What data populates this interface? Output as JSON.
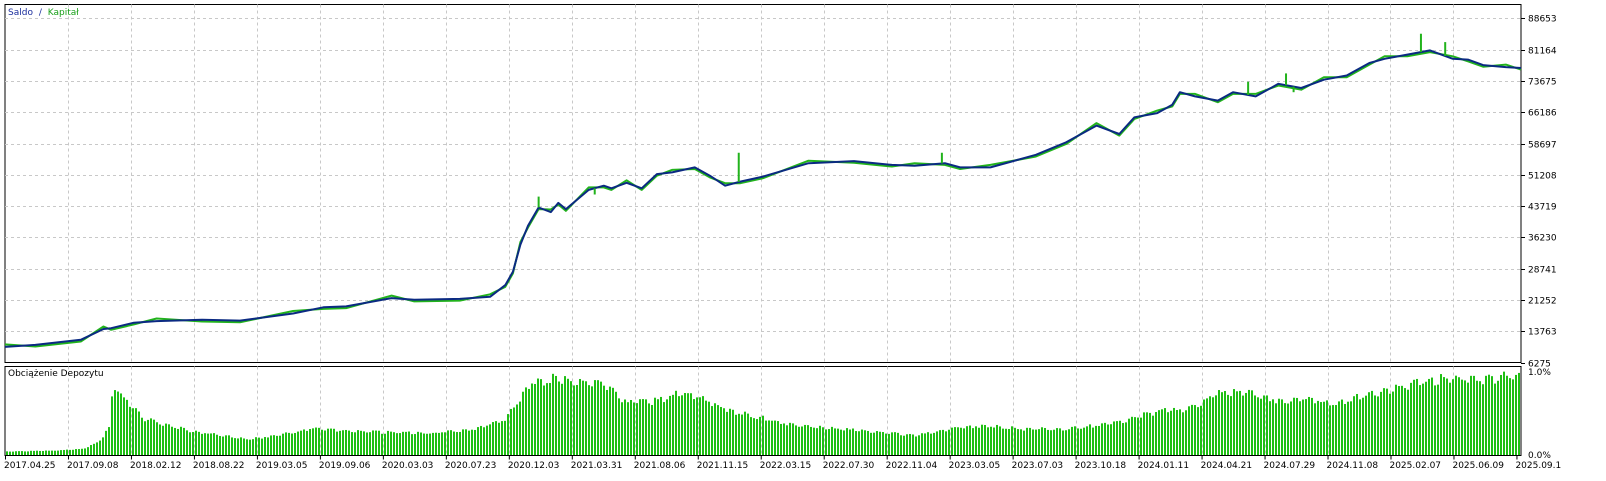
{
  "colors": {
    "balance": "#0b2a82",
    "equity": "#22b31c",
    "load_bar": "#1fbf14",
    "grid": "#c8c8c8",
    "frame": "#000000"
  },
  "legend": {
    "balance_label": "Saldo",
    "separator": "/",
    "equity_label": "Kapitał"
  },
  "chart_data": [
    {
      "type": "line",
      "legend": [
        "Saldo",
        "Kapitał"
      ],
      "ylim": [
        6275,
        92000
      ],
      "y_ticks": [
        6275,
        13763,
        21252,
        28741,
        36230,
        43719,
        51208,
        58697,
        66186,
        73675,
        81164,
        88653
      ],
      "grid": true,
      "series": [
        {
          "name": "Saldo",
          "x": [
            0,
            0.02,
            0.05,
            0.065,
            0.07,
            0.085,
            0.1,
            0.13,
            0.155,
            0.19,
            0.21,
            0.225,
            0.255,
            0.27,
            0.3,
            0.32,
            0.33,
            0.335,
            0.34,
            0.345,
            0.352,
            0.36,
            0.365,
            0.37,
            0.385,
            0.395,
            0.4,
            0.41,
            0.42,
            0.43,
            0.44,
            0.455,
            0.465,
            0.475,
            0.485,
            0.5,
            0.53,
            0.56,
            0.585,
            0.6,
            0.62,
            0.63,
            0.65,
            0.68,
            0.7,
            0.72,
            0.735,
            0.745,
            0.76,
            0.77,
            0.775,
            0.785,
            0.8,
            0.81,
            0.825,
            0.84,
            0.855,
            0.87,
            0.885,
            0.9,
            0.91,
            0.925,
            0.94,
            0.955,
            0.965,
            0.975,
            0.99,
            1.0
          ],
          "values": [
            10000,
            10500,
            11700,
            14300,
            14500,
            15800,
            16200,
            16500,
            16300,
            18000,
            19500,
            19700,
            21700,
            21300,
            21500,
            22000,
            24800,
            28000,
            34500,
            39000,
            43400,
            42300,
            44500,
            43000,
            47600,
            48600,
            48000,
            49300,
            48000,
            51400,
            51800,
            53000,
            51000,
            48600,
            49600,
            50800,
            54000,
            54500,
            53600,
            53400,
            54000,
            53000,
            53000,
            56000,
            59000,
            63000,
            61000,
            65000,
            66000,
            68000,
            71000,
            70000,
            69000,
            71000,
            70000,
            73000,
            72000,
            74000,
            75000,
            78000,
            79000,
            80000,
            81000,
            79000,
            78800,
            77500,
            77000,
            76800
          ]
        },
        {
          "name": "Kapitał",
          "x": [
            0.352,
            0.389,
            0.484,
            0.618,
            0.82,
            0.845,
            0.85,
            0.934,
            0.95
          ],
          "values": [
            46000,
            46500,
            56500,
            56500,
            73500,
            75500,
            71000,
            85000,
            83000
          ]
        }
      ]
    },
    {
      "type": "bar",
      "title": "Obciążenie Depozytu",
      "ylim": [
        0,
        1.0
      ],
      "y_tick_labels": [
        "1.0%",
        "0.0%"
      ],
      "x_tick_labels": [
        "2017.04.25",
        "2017.09.08",
        "2018.02.12",
        "2018.08.22",
        "2019.03.05",
        "2019.09.06",
        "2020.03.03",
        "2020.07.23",
        "2020.12.03",
        "2021.03.31",
        "2021.08.06",
        "2021.11.15",
        "2022.03.15",
        "2022.07.30",
        "2022.11.04",
        "2023.03.05",
        "2023.07.03",
        "2023.10.18",
        "2024.01.11",
        "2024.04.21",
        "2024.07.29",
        "2024.11.08",
        "2025.02.07",
        "2025.06.09",
        "2025.09.1"
      ],
      "profile": {
        "x": [
          0,
          0.03,
          0.05,
          0.06,
          0.068,
          0.07,
          0.075,
          0.09,
          0.12,
          0.16,
          0.19,
          0.2,
          0.22,
          0.25,
          0.28,
          0.31,
          0.33,
          0.345,
          0.36,
          0.37,
          0.385,
          0.395,
          0.41,
          0.43,
          0.445,
          0.46,
          0.48,
          0.5,
          0.52,
          0.55,
          0.58,
          0.6,
          0.63,
          0.65,
          0.67,
          0.7,
          0.73,
          0.76,
          0.78,
          0.8,
          0.82,
          0.84,
          0.86,
          0.875,
          0.9,
          0.93,
          0.95,
          0.97,
          0.99,
          1.0
        ],
        "values": [
          0.04,
          0.05,
          0.07,
          0.14,
          0.32,
          0.8,
          0.7,
          0.42,
          0.28,
          0.18,
          0.26,
          0.3,
          0.28,
          0.26,
          0.25,
          0.3,
          0.42,
          0.82,
          0.88,
          0.85,
          0.82,
          0.8,
          0.6,
          0.62,
          0.72,
          0.64,
          0.5,
          0.42,
          0.35,
          0.3,
          0.26,
          0.22,
          0.32,
          0.34,
          0.3,
          0.3,
          0.36,
          0.5,
          0.52,
          0.7,
          0.73,
          0.62,
          0.66,
          0.58,
          0.7,
          0.82,
          0.88,
          0.85,
          0.9,
          0.93
        ]
      }
    }
  ]
}
